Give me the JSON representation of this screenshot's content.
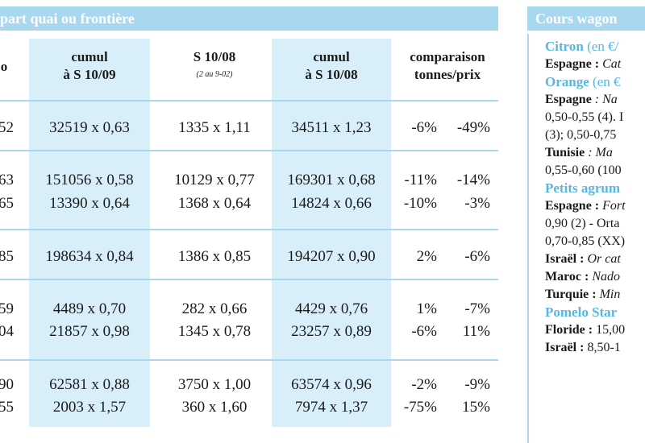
{
  "left_banner": "part quai ou frontière",
  "right_banner": "Cours wagon",
  "headers": {
    "col1": {
      "line1": "cumul",
      "line2": "à S 10/09"
    },
    "col2": {
      "line1": "S 10/08",
      "line2": "(2 au 9-02)"
    },
    "col3": {
      "line1": "cumul",
      "line2": "à S 10/08"
    },
    "col4": {
      "line1": "comparaison",
      "line2": "tonnes/prix"
    },
    "col0_fragment": "o"
  },
  "rows": [
    {
      "c0": "52",
      "c1": "32519 x 0,63",
      "c2": "1335 x 1,11",
      "c3": "34511 x 1,23",
      "pct1": "-6%",
      "pct2": "-49%"
    },
    {
      "c0": "63",
      "c1": "151056 x 0,58",
      "c2": "10129 x 0,77",
      "c3": "169301 x 0,68",
      "pct1": "-11%",
      "pct2": "-14%"
    },
    {
      "c0": "65",
      "c1": "13390 x 0,64",
      "c2": "1368 x 0,64",
      "c3": "14824 x 0,66",
      "pct1": "-10%",
      "pct2": "-3%"
    },
    {
      "c0": "85",
      "c1": "198634 x 0,84",
      "c2": "1386 x 0,85",
      "c3": "194207 x 0,90",
      "pct1": "2%",
      "pct2": "-6%"
    },
    {
      "c0": "59",
      "c1": "4489 x 0,70",
      "c2": "282 x 0,66",
      "c3": "4429 x 0,76",
      "pct1": "1%",
      "pct2": "-7%"
    },
    {
      "c0": "04",
      "c1": "21857 x 0,98",
      "c2": "1345 x 0,78",
      "c3": "23257 x 0,89",
      "pct1": "-6%",
      "pct2": "11%"
    },
    {
      "c0": "90",
      "c1": "62581 x 0,88",
      "c2": "3750 x 1,00",
      "c3": "63574 x 0,96",
      "pct1": "-2%",
      "pct2": "-9%"
    },
    {
      "c0": "55",
      "c1": "2003 x 1,57",
      "c2": "360 x 1,60",
      "c3": "7974 x 1,37",
      "pct1": "-75%",
      "pct2": "15%"
    }
  ],
  "right_panel": {
    "citron_cat": "Citron",
    "citron_unit": " (en €/",
    "espagne1_label": "Espagne :",
    "espagne1_text": " Cat",
    "orange_cat": "Orange",
    "orange_unit": " (en €",
    "espagne2_label": "Espagne",
    "espagne2_text": " : Na",
    "line_a": "0,50-0,55 (4). I",
    "line_b": "(3); 0,50-0,75",
    "tunisie_label": "Tunisie",
    "tunisie_text": " : Ma",
    "line_c": "0,55-0,60 (100",
    "petits_cat": "Petits agrum",
    "espagne3_label": "Espagne :",
    "espagne3_text": " Fort",
    "line_d": "0,90 (2) - Orta",
    "line_e": "0,70-0,85 (XX)",
    "israel1_label": "Israël :",
    "israel1_text": " Or cat",
    "maroc_label": "Maroc :",
    "maroc_text": " Nado",
    "turquie_label": "Turquie :",
    "turquie_text": " Min",
    "pomelo_cat": "Pomelo Star",
    "floride_label": "Floride :",
    "floride_text": " 15,00",
    "israel2_label": "Israël :",
    "israel2_text": " 8,50-1"
  }
}
